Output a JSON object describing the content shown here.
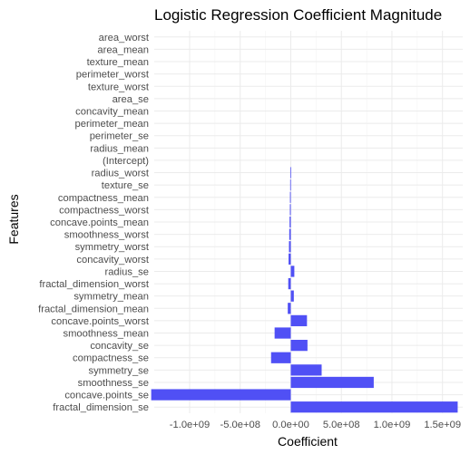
{
  "chart_data": {
    "type": "bar",
    "orientation": "horizontal",
    "title": "Logistic Regression Coefficient Magnitude",
    "xlabel": "Coefficient",
    "ylabel": "Features",
    "bar_color": "#5050f5",
    "grid": true,
    "xlim": [
      -1350000000.0,
      1700000000.0
    ],
    "x_ticks": [
      {
        "value": -1000000000.0,
        "label": "-1.0e+09"
      },
      {
        "value": -500000000.0,
        "label": "-5.0e+08"
      },
      {
        "value": 0,
        "label": "0.0e+00"
      },
      {
        "value": 500000000.0,
        "label": "5.0e+08"
      },
      {
        "value": 1000000000.0,
        "label": "1.0e+09"
      },
      {
        "value": 1500000000.0,
        "label": "1.5e+09"
      }
    ],
    "categories": [
      "area_worst",
      "area_mean",
      "texture_mean",
      "perimeter_worst",
      "texture_worst",
      "area_se",
      "concavity_mean",
      "perimeter_mean",
      "perimeter_se",
      "radius_mean",
      "(Intercept)",
      "radius_worst",
      "texture_se",
      "compactness_mean",
      "compactness_worst",
      "concave.points_mean",
      "smoothness_worst",
      "symmetry_worst",
      "concavity_worst",
      "radius_se",
      "fractal_dimension_worst",
      "symmetry_mean",
      "fractal_dimension_mean",
      "concave.points_worst",
      "smoothness_mean",
      "concavity_se",
      "compactness_se",
      "symmetry_se",
      "smoothness_se",
      "concave.points_se",
      "fractal_dimension_se"
    ],
    "values": [
      0,
      0,
      0,
      0,
      0,
      0,
      0,
      0,
      0,
      0,
      0,
      -5000000,
      -6000000,
      -8000000,
      -9000000,
      -12000000,
      -15000000,
      -18000000,
      -22000000,
      35000000,
      -25000000,
      30000000,
      -30000000,
      160000000,
      -160000000,
      165000000,
      -195000000,
      305000000,
      820000000,
      -1380000000,
      1650000000
    ]
  }
}
